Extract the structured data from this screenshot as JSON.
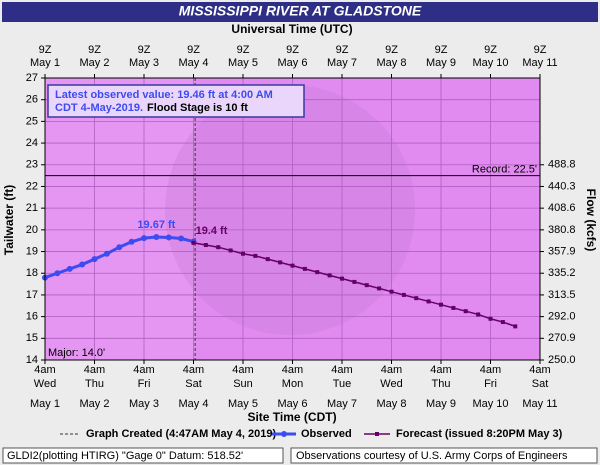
{
  "chart_data": {
    "type": "line",
    "title": "MISSISSIPPI RIVER AT GLADSTONE",
    "top_axis_label": "Universal Time (UTC)",
    "xlabel": "Site Time (CDT)",
    "ylabel": "Tailwater (ft)",
    "y2label": "Flow (kcfs)",
    "grid": true,
    "xlim": [
      "2019-05-01 04:00",
      "2019-05-11 04:00"
    ],
    "ylim": [
      14,
      27
    ],
    "yticks": [
      14,
      15,
      16,
      17,
      18,
      19,
      20,
      21,
      22,
      23,
      24,
      25,
      26,
      27
    ],
    "y2ticks": [
      {
        "value": 250.0,
        "label": "250.0",
        "stage": 14
      },
      {
        "value": 270.9,
        "label": "270.9",
        "stage": 15
      },
      {
        "value": 292.0,
        "label": "292.0",
        "stage": 16
      },
      {
        "value": 313.5,
        "label": "313.5",
        "stage": 17
      },
      {
        "value": 335.2,
        "label": "335.2",
        "stage": 18
      },
      {
        "value": 357.9,
        "label": "357.9",
        "stage": 19
      },
      {
        "value": 380.8,
        "label": "380.8",
        "stage": 20
      },
      {
        "value": 408.6,
        "label": "408.6",
        "stage": 21
      },
      {
        "value": 440.3,
        "label": "440.3",
        "stage": 22
      },
      {
        "value": 488.8,
        "label": "488.8",
        "stage": 23
      }
    ],
    "top_ticks": [
      {
        "value": "2019-05-01 04:00",
        "time": "9Z",
        "date": "May 1"
      },
      {
        "value": "2019-05-02 04:00",
        "time": "9Z",
        "date": "May 2"
      },
      {
        "value": "2019-05-03 04:00",
        "time": "9Z",
        "date": "May 3"
      },
      {
        "value": "2019-05-04 04:00",
        "time": "9Z",
        "date": "May 4"
      },
      {
        "value": "2019-05-05 04:00",
        "time": "9Z",
        "date": "May 5"
      },
      {
        "value": "2019-05-06 04:00",
        "time": "9Z",
        "date": "May 6"
      },
      {
        "value": "2019-05-07 04:00",
        "time": "9Z",
        "date": "May 7"
      },
      {
        "value": "2019-05-08 04:00",
        "time": "9Z",
        "date": "May 8"
      },
      {
        "value": "2019-05-09 04:00",
        "time": "9Z",
        "date": "May 9"
      },
      {
        "value": "2019-05-10 04:00",
        "time": "9Z",
        "date": "May 10"
      },
      {
        "value": "2019-05-11 04:00",
        "time": "9Z",
        "date": "May 11"
      }
    ],
    "bottom_ticks": [
      {
        "value": "2019-05-01 04:00",
        "time": "4am",
        "day": "Wed",
        "date": "May 1"
      },
      {
        "value": "2019-05-02 04:00",
        "time": "4am",
        "day": "Thu",
        "date": "May 2"
      },
      {
        "value": "2019-05-03 04:00",
        "time": "4am",
        "day": "Fri",
        "date": "May 3"
      },
      {
        "value": "2019-05-04 04:00",
        "time": "4am",
        "day": "Sat",
        "date": "May 4"
      },
      {
        "value": "2019-05-05 04:00",
        "time": "4am",
        "day": "Sun",
        "date": "May 5"
      },
      {
        "value": "2019-05-06 04:00",
        "time": "4am",
        "day": "Mon",
        "date": "May 6"
      },
      {
        "value": "2019-05-07 04:00",
        "time": "4am",
        "day": "Tue",
        "date": "May 7"
      },
      {
        "value": "2019-05-08 04:00",
        "time": "4am",
        "day": "Wed",
        "date": "May 8"
      },
      {
        "value": "2019-05-09 04:00",
        "time": "4am",
        "day": "Thu",
        "date": "May 9"
      },
      {
        "value": "2019-05-10 04:00",
        "time": "4am",
        "day": "Fri",
        "date": "May 10"
      },
      {
        "value": "2019-05-11 04:00",
        "time": "4am",
        "day": "Sat",
        "date": "May 11"
      }
    ],
    "series": [
      {
        "name": "Observed",
        "color": "#3d4cf0",
        "x": [
          "2019-05-01 04:00",
          "2019-05-01 10:00",
          "2019-05-01 16:00",
          "2019-05-01 22:00",
          "2019-05-02 04:00",
          "2019-05-02 10:00",
          "2019-05-02 16:00",
          "2019-05-02 22:00",
          "2019-05-03 04:00",
          "2019-05-03 10:00",
          "2019-05-03 16:00",
          "2019-05-03 22:00",
          "2019-05-04 04:00"
        ],
        "values": [
          17.8,
          18.0,
          18.2,
          18.4,
          18.65,
          18.9,
          19.2,
          19.45,
          19.62,
          19.67,
          19.65,
          19.6,
          19.46
        ]
      },
      {
        "name": "Forecast (issued 8:20PM May 3)",
        "color": "#660066",
        "x": [
          "2019-05-04 04:00",
          "2019-05-04 10:00",
          "2019-05-04 16:00",
          "2019-05-04 22:00",
          "2019-05-05 04:00",
          "2019-05-05 10:00",
          "2019-05-05 16:00",
          "2019-05-05 22:00",
          "2019-05-06 04:00",
          "2019-05-06 10:00",
          "2019-05-06 16:00",
          "2019-05-06 22:00",
          "2019-05-07 04:00",
          "2019-05-07 10:00",
          "2019-05-07 16:00",
          "2019-05-07 22:00",
          "2019-05-08 04:00",
          "2019-05-08 10:00",
          "2019-05-08 16:00",
          "2019-05-08 22:00",
          "2019-05-09 04:00",
          "2019-05-09 10:00",
          "2019-05-09 16:00",
          "2019-05-09 22:00",
          "2019-05-10 04:00",
          "2019-05-10 10:00",
          "2019-05-10 16:00"
        ],
        "values": [
          19.4,
          19.3,
          19.2,
          19.05,
          18.9,
          18.8,
          18.65,
          18.5,
          18.35,
          18.2,
          18.05,
          17.9,
          17.75,
          17.6,
          17.45,
          17.3,
          17.15,
          17.0,
          16.85,
          16.7,
          16.55,
          16.4,
          16.25,
          16.1,
          15.9,
          15.75,
          15.55
        ]
      }
    ],
    "annotations": [
      {
        "text": "19.67 ft",
        "x": "2019-05-03 10:00",
        "y": 19.67,
        "color": "#3d4cf0"
      },
      {
        "text": "19.4 ft",
        "x": "2019-05-04 04:00",
        "y": 19.4,
        "color": "#660066"
      }
    ],
    "record": {
      "value": 22.5,
      "label": "Record: 22.5'"
    },
    "major": {
      "value": 14.0,
      "label": "Major: 14.0'"
    },
    "graph_created": {
      "x": "2019-05-04 04:47",
      "label": "Graph Created (4:47AM May 4, 2019)"
    },
    "info": {
      "line1": "Latest observed value: 19.46 ft at 4:00 AM",
      "line2a": "CDT 4-May-2019.",
      "line2b": "Flood Stage is 10 ft"
    },
    "footer_left": "GLDI2(plotting HTIRG) \"Gage 0\" Datum: 518.52'",
    "footer_right": "Observations courtesy of U.S. Army Corps of Engineers"
  }
}
